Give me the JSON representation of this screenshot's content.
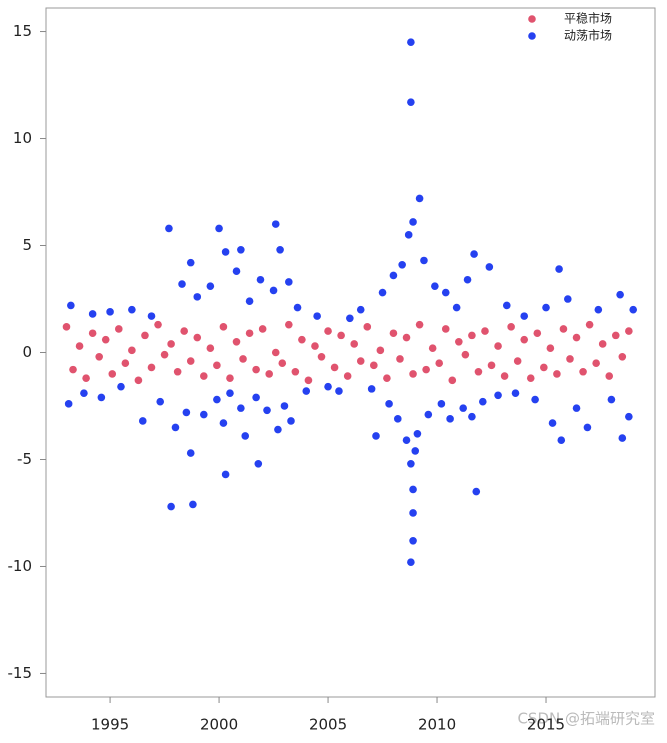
{
  "chart_data": {
    "type": "scatter",
    "watermark": "CSDN @拓端研究室",
    "xlim": [
      1992.06,
      2020.0
    ],
    "ylim": [
      -16.1,
      16.1
    ],
    "xticks": [
      1995,
      2000,
      2005,
      2010,
      2015
    ],
    "yticks": [
      -15,
      -10,
      -5,
      0,
      5,
      10,
      15
    ],
    "legend": "top-right",
    "series": [
      {
        "name": "平稳市场",
        "color": "#e0536e",
        "x": [
          1993.0,
          1993.3,
          1993.6,
          1993.9,
          1994.2,
          1994.5,
          1994.8,
          1995.1,
          1995.4,
          1995.7,
          1996.0,
          1996.3,
          1996.6,
          1996.9,
          1997.2,
          1997.5,
          1997.8,
          1998.1,
          1998.4,
          1998.7,
          1999.0,
          1999.3,
          1999.6,
          1999.9,
          2000.2,
          2000.5,
          2000.8,
          2001.1,
          2001.4,
          2001.7,
          2002.0,
          2002.3,
          2002.6,
          2002.9,
          2003.2,
          2003.5,
          2003.8,
          2004.1,
          2004.4,
          2004.7,
          2005.0,
          2005.3,
          2005.6,
          2005.9,
          2006.2,
          2006.5,
          2006.8,
          2007.1,
          2007.4,
          2007.7,
          2008.0,
          2008.3,
          2008.6,
          2008.9,
          2009.2,
          2009.5,
          2009.8,
          2010.1,
          2010.4,
          2010.7,
          2011.0,
          2011.3,
          2011.6,
          2011.9,
          2012.2,
          2012.5,
          2012.8,
          2013.1,
          2013.4,
          2013.7,
          2014.0,
          2014.3,
          2014.6,
          2014.9,
          2015.2,
          2015.5,
          2015.8,
          2016.1,
          2016.4,
          2016.7,
          2017.0,
          2017.3,
          2017.6,
          2017.9,
          2018.2,
          2018.5,
          2018.8
        ],
        "values": [
          1.2,
          -0.8,
          0.3,
          -1.2,
          0.9,
          -0.2,
          0.6,
          -1.0,
          1.1,
          -0.5,
          0.1,
          -1.3,
          0.8,
          -0.7,
          1.3,
          -0.1,
          0.4,
          -0.9,
          1.0,
          -0.4,
          0.7,
          -1.1,
          0.2,
          -0.6,
          1.2,
          -1.2,
          0.5,
          -0.3,
          0.9,
          -0.8,
          1.1,
          -1.0,
          0.0,
          -0.5,
          1.3,
          -0.9,
          0.6,
          -1.3,
          0.3,
          -0.2,
          1.0,
          -0.7,
          0.8,
          -1.1,
          0.4,
          -0.4,
          1.2,
          -0.6,
          0.1,
          -1.2,
          0.9,
          -0.3,
          0.7,
          -1.0,
          1.3,
          -0.8,
          0.2,
          -0.5,
          1.1,
          -1.3,
          0.5,
          -0.1,
          0.8,
          -0.9,
          1.0,
          -0.6,
          0.3,
          -1.1,
          1.2,
          -0.4,
          0.6,
          -1.2,
          0.9,
          -0.7,
          0.2,
          -1.0,
          1.1,
          -0.3,
          0.7,
          -0.9,
          1.3,
          -0.5,
          0.4,
          -1.1,
          0.8,
          -0.2,
          1.0
        ]
      },
      {
        "name": "动荡市场",
        "color": "#2541f0",
        "x": [
          1993.2,
          1993.1,
          1993.8,
          1994.2,
          1994.6,
          1995.0,
          1995.5,
          1996.0,
          1996.5,
          1996.9,
          1997.3,
          1997.7,
          1997.8,
          1998.0,
          1998.3,
          1998.5,
          1998.7,
          1998.7,
          1998.8,
          1999.0,
          1999.3,
          1999.6,
          1999.9,
          2000.0,
          2000.2,
          2000.3,
          2000.5,
          2000.3,
          2000.8,
          2001.0,
          2001.0,
          2001.2,
          2001.4,
          2001.7,
          2001.8,
          2001.9,
          2002.2,
          2002.5,
          2002.6,
          2002.7,
          2002.8,
          2003.0,
          2003.2,
          2003.3,
          2003.6,
          2004.0,
          2004.5,
          2005.0,
          2005.5,
          2006.0,
          2006.5,
          2007.0,
          2007.2,
          2007.5,
          2007.8,
          2008.0,
          2008.2,
          2008.4,
          2008.6,
          2008.7,
          2008.8,
          2008.8,
          2008.8,
          2008.9,
          2008.9,
          2008.9,
          2008.8,
          2008.9,
          2009.0,
          2009.2,
          2009.1,
          2009.4,
          2009.6,
          2009.9,
          2010.2,
          2010.4,
          2010.6,
          2010.9,
          2011.2,
          2011.4,
          2011.6,
          2011.7,
          2011.8,
          2012.1,
          2012.4,
          2012.8,
          2013.2,
          2013.6,
          2014.0,
          2014.5,
          2015.0,
          2015.3,
          2015.6,
          2015.7,
          2016.0,
          2016.4,
          2016.9,
          2017.4,
          2018.0,
          2018.4,
          2018.5,
          2018.8,
          2019.0
        ],
        "values": [
          2.2,
          -2.4,
          -1.9,
          1.8,
          -2.1,
          1.9,
          -1.6,
          2.0,
          -3.2,
          1.7,
          -2.3,
          5.8,
          -7.2,
          -3.5,
          3.2,
          -2.8,
          4.2,
          -4.7,
          -7.1,
          2.6,
          -2.9,
          3.1,
          -2.2,
          5.8,
          -3.3,
          4.7,
          -1.9,
          -5.7,
          3.8,
          -2.6,
          4.8,
          -3.9,
          2.4,
          -2.1,
          -5.2,
          3.4,
          -2.7,
          2.9,
          6.0,
          -3.6,
          4.8,
          -2.5,
          3.3,
          -3.2,
          2.1,
          -1.8,
          1.7,
          -1.6,
          -1.8,
          1.6,
          2.0,
          -1.7,
          -3.9,
          2.8,
          -2.4,
          3.6,
          -3.1,
          4.1,
          -4.1,
          5.5,
          14.5,
          11.7,
          -9.8,
          -8.8,
          -7.5,
          -6.4,
          -5.2,
          6.1,
          -4.6,
          7.2,
          -3.8,
          4.3,
          -2.9,
          3.1,
          -2.4,
          2.8,
          -3.1,
          2.1,
          -2.6,
          3.4,
          -3.0,
          4.6,
          -6.5,
          -2.3,
          4.0,
          -2.0,
          2.2,
          -1.9,
          1.7,
          -2.2,
          2.1,
          -3.3,
          3.9,
          -4.1,
          2.5,
          -2.6,
          -3.5,
          2.0,
          -2.2,
          2.7,
          -4.0,
          -3.0,
          2.0
        ]
      }
    ]
  }
}
